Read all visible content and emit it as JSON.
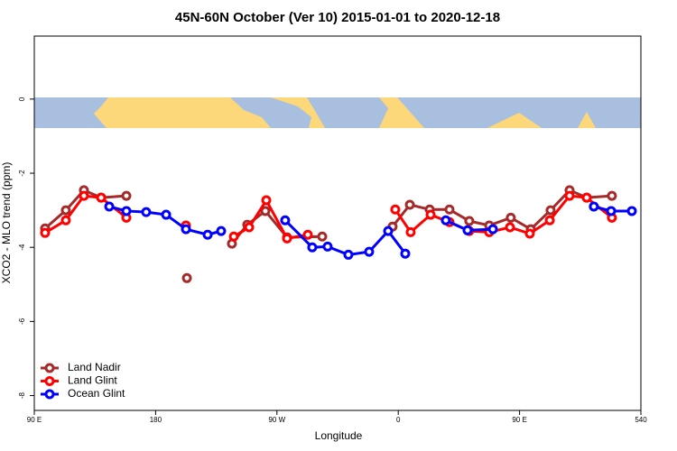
{
  "chart_data": {
    "type": "line",
    "title": "45N-60N October (Ver 10)   2015-01-01 to 2020-12-18",
    "x_label": "Longitude",
    "y_label": "XCO2 - MLO trend (ppm)",
    "xlim": [
      90,
      540
    ],
    "xticks": [
      {
        "value": 90,
        "label": "90 E"
      },
      180,
      {
        "value": 270,
        "label": "90 W"
      },
      {
        "value": 360,
        "label": "0"
      },
      {
        "value": 450,
        "label": "90 E"
      },
      540
    ],
    "ylim": [
      -8.4,
      1.7
    ],
    "yticks": [
      0,
      -2,
      -4,
      -6,
      -8
    ],
    "legend": "bottom-left",
    "series": [
      {
        "name": "Land Nadir",
        "color": "#a52a2a",
        "x": [
          98,
          113.4,
          126.8,
          139.6,
          158.3,
          null,
          203.2,
          null,
          236.6,
          248,
          261.4,
          277.5,
          303.6,
          null,
          355.8,
          368.6,
          383.3,
          398,
          412.7,
          427.5,
          443.5,
          458.3,
          473,
          487.1,
          499.8,
          518.5
        ],
        "values": [
          -3.49,
          -3.0,
          -2.46,
          -2.66,
          -2.61,
          null,
          -4.83,
          null,
          -3.9,
          -3.39,
          -3.02,
          -3.73,
          -3.71,
          null,
          -3.44,
          -2.85,
          -2.98,
          -2.98,
          -3.29,
          -3.41,
          -3.2,
          -3.51,
          -3.0,
          -2.46,
          -2.66,
          -2.61
        ]
      },
      {
        "name": "Land Glint",
        "color": "#ff0000",
        "x": [
          98,
          113.4,
          126.8,
          139.6,
          158.3,
          null,
          202.5,
          null,
          238,
          249.4,
          262.1,
          277.5,
          292.9,
          null,
          357.8,
          369.2,
          384,
          398,
          412.7,
          427.5,
          442.9,
          457.6,
          472.4,
          487.1,
          499.8,
          518.5
        ],
        "values": [
          -3.61,
          -3.27,
          -2.61,
          -2.66,
          -3.2,
          null,
          -3.41,
          null,
          -3.71,
          -3.46,
          -2.73,
          -3.76,
          -3.66,
          null,
          -2.98,
          -3.59,
          -3.12,
          -3.32,
          -3.56,
          -3.59,
          -3.46,
          -3.63,
          -3.27,
          -2.61,
          -2.66,
          -3.2
        ]
      },
      {
        "name": "Ocean Glint",
        "color": "#0000ff",
        "x": [
          145.6,
          158.3,
          173,
          187.8,
          202.5,
          218.6,
          228.6,
          null,
          276.1,
          296.2,
          307.6,
          323,
          338.4,
          352.5,
          365.2,
          null,
          395.3,
          411.4,
          430.2,
          null,
          505.1,
          517.9,
          533.3
        ],
        "values": [
          -2.9,
          -3.02,
          -3.05,
          -3.12,
          -3.51,
          -3.66,
          -3.56,
          null,
          -3.27,
          -4.0,
          -3.98,
          -4.2,
          -4.12,
          -3.56,
          -4.17,
          null,
          -3.27,
          -3.54,
          -3.51,
          null,
          -2.9,
          -3.02,
          -3.02
        ]
      }
    ]
  }
}
